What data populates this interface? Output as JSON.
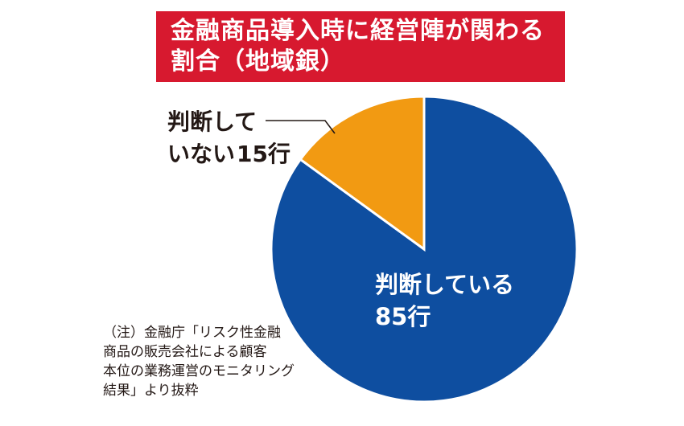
{
  "title": {
    "line1": "金融商品導入時に経営陣が関わる",
    "line2": "割合（地域銀）"
  },
  "colors": {
    "title_bg": "#d7192f",
    "judging": "#0e4ea0",
    "not_judging": "#f29a12",
    "text": "#231815"
  },
  "labels": {
    "not_judging_line1": "判断して",
    "not_judging_line2": "いない",
    "not_judging_value": "15行",
    "judging_line1": "判断している",
    "judging_value": "85行"
  },
  "note": {
    "line1": "（注）金融庁「リスク性金融",
    "line2": "商品の販売会社による顧客",
    "line3": "本位の業務運営のモニタリング",
    "line4": "結果」より抜粋"
  },
  "chart_data": {
    "type": "pie",
    "title": "金融商品導入時に経営陣が関わる割合（地域銀）",
    "slices": [
      {
        "label": "判断している",
        "value": 85,
        "display": "85行",
        "color": "#0e4ea0"
      },
      {
        "label": "判断していない",
        "value": 15,
        "display": "15行",
        "color": "#f29a12"
      }
    ],
    "start_angle": "12 o'clock",
    "direction": "clockwise"
  }
}
